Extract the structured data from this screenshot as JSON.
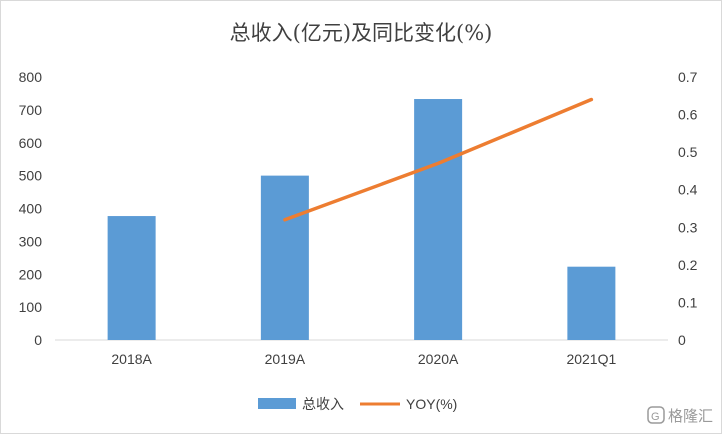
{
  "chart_data": {
    "type": "bar",
    "title": "总收入(亿元)及同比变化(%)",
    "categories": [
      "2018A",
      "2019A",
      "2020A",
      "2021Q1"
    ],
    "series": [
      {
        "name": "总收入",
        "type": "bar",
        "axis": "left",
        "color": "#5B9BD5",
        "values": [
          377,
          500,
          733,
          223
        ]
      },
      {
        "name": "YOY(%)",
        "type": "line",
        "axis": "right",
        "color": "#ED7D31",
        "values": [
          null,
          0.32,
          0.47,
          0.64
        ]
      }
    ],
    "y_left": {
      "min": 0,
      "max": 800,
      "step": 100,
      "ticks": [
        "0",
        "100",
        "200",
        "300",
        "400",
        "500",
        "600",
        "700",
        "800"
      ]
    },
    "y_right": {
      "min": 0,
      "max": 0.7,
      "step": 0.1,
      "ticks": [
        "0",
        "0.1",
        "0.2",
        "0.3",
        "0.4",
        "0.5",
        "0.6",
        "0.7"
      ]
    },
    "grid": false,
    "legend": "bottom"
  },
  "watermark": {
    "text": "格隆汇"
  }
}
